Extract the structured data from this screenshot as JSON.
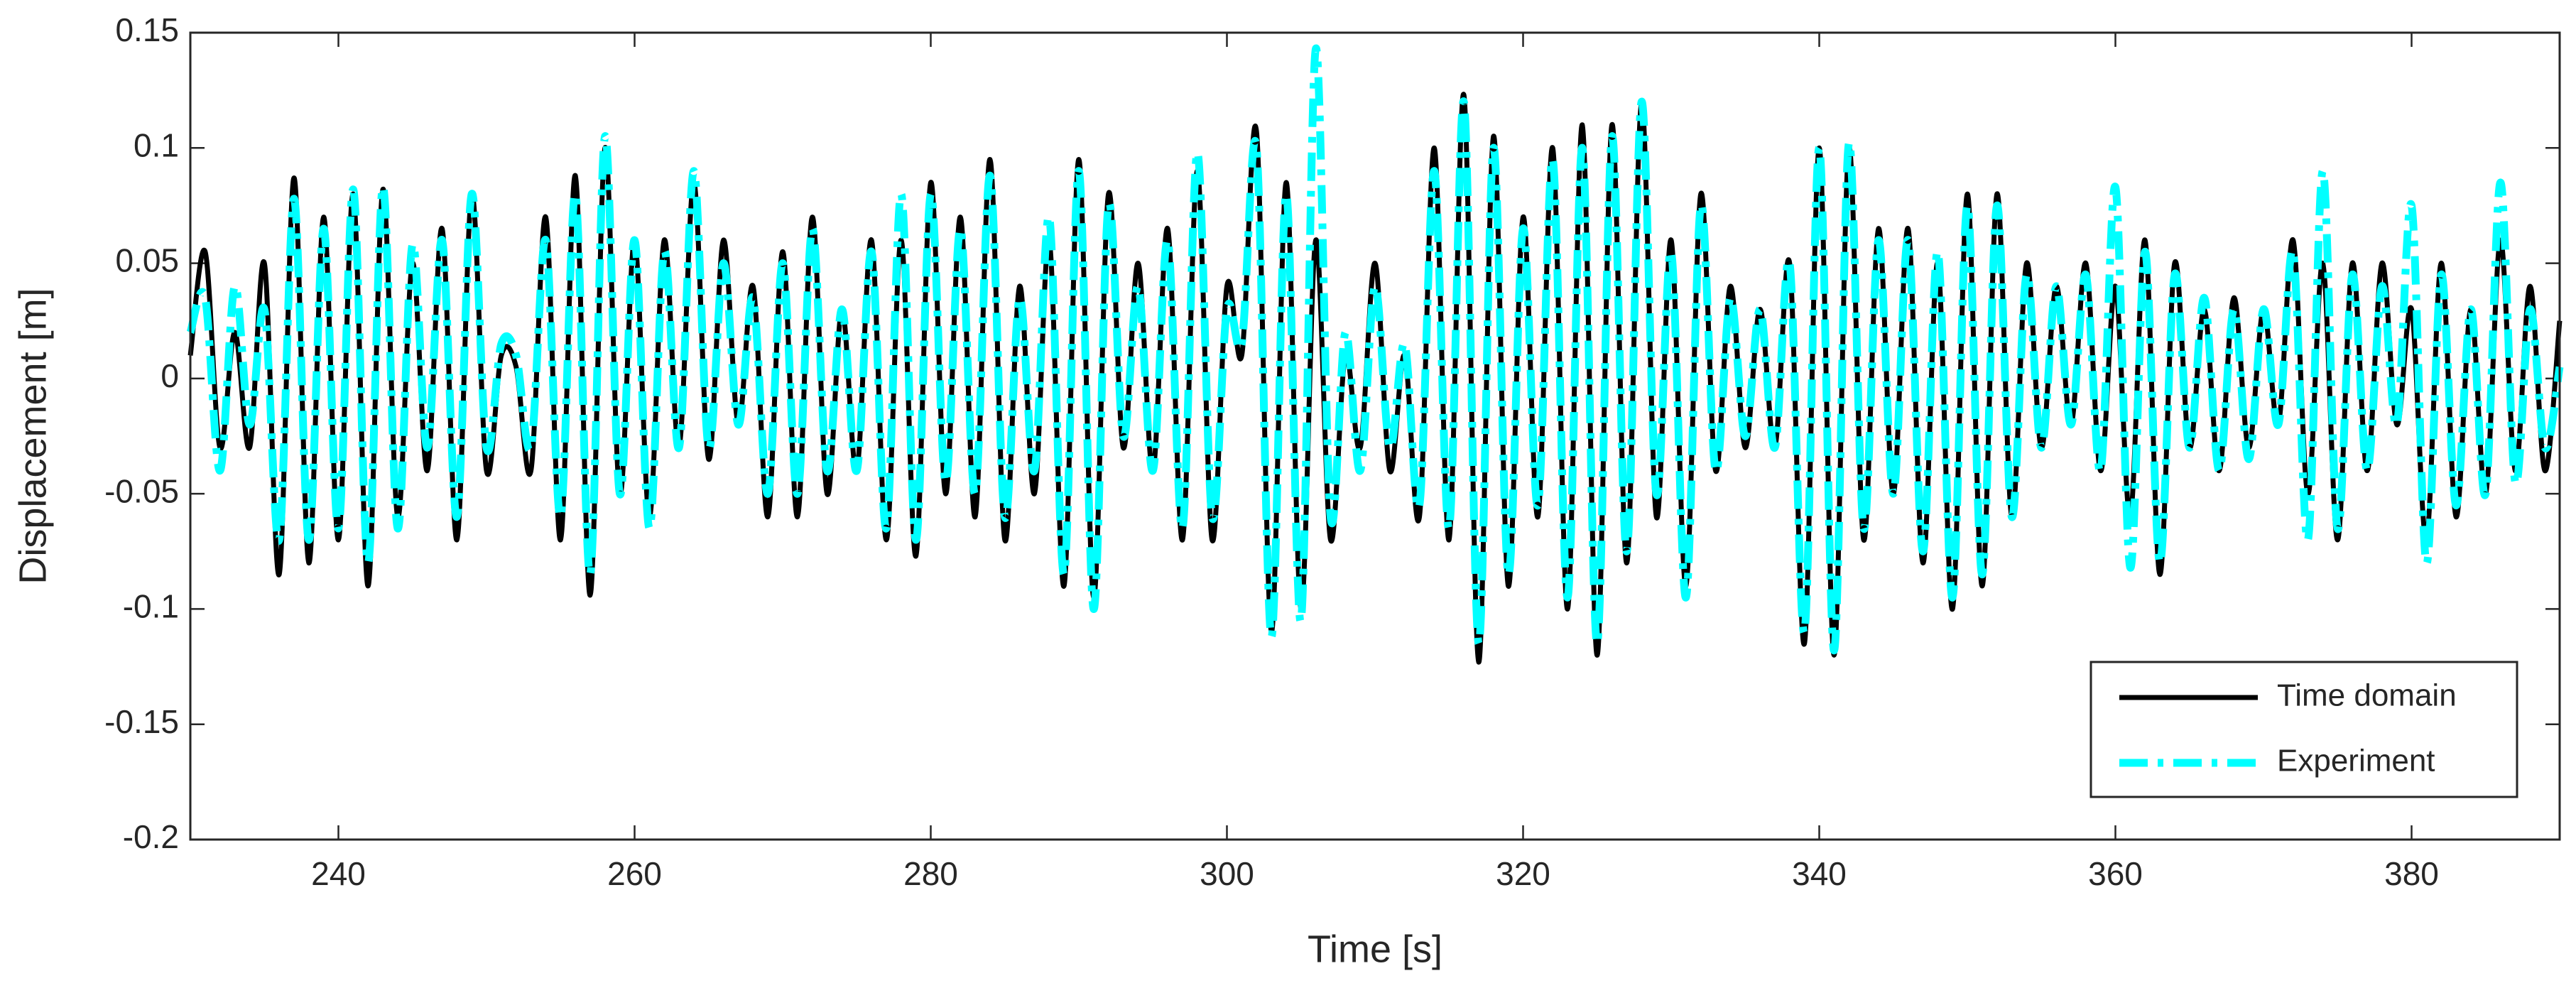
{
  "chart_data": {
    "type": "line",
    "xlabel": "Time [s]",
    "ylabel": "Displacement [m]",
    "xlim": [
      230,
      390
    ],
    "xticks": [
      240,
      260,
      280,
      300,
      320,
      340,
      360,
      380
    ],
    "ylim": [
      -0.2,
      0.15
    ],
    "yticks": [
      -0.2,
      -0.15,
      -0.1,
      -0.05,
      0,
      0.05,
      0.1,
      0.15
    ],
    "legend": "lower right",
    "x": [
      230,
      231,
      232,
      233,
      234,
      235,
      236,
      237,
      238,
      239,
      240,
      241,
      242,
      243,
      244,
      245,
      246,
      247,
      248,
      249,
      250,
      251,
      252,
      253,
      254,
      255,
      256,
      257,
      258,
      259,
      260,
      261,
      262,
      263,
      264,
      265,
      266,
      267,
      268,
      269,
      270,
      271,
      272,
      273,
      274,
      275,
      276,
      277,
      278,
      279,
      280,
      281,
      282,
      283,
      284,
      285,
      286,
      287,
      288,
      289,
      290,
      291,
      292,
      293,
      294,
      295,
      296,
      297,
      298,
      299,
      300,
      301,
      302,
      303,
      304,
      305,
      306,
      307,
      308,
      309,
      310,
      311,
      312,
      313,
      314,
      315,
      316,
      317,
      318,
      319,
      320,
      321,
      322,
      323,
      324,
      325,
      326,
      327,
      328,
      329,
      330,
      331,
      332,
      333,
      334,
      335,
      336,
      337,
      338,
      339,
      340,
      341,
      342,
      343,
      344,
      345,
      346,
      347,
      348,
      349,
      350,
      351,
      352,
      353,
      354,
      355,
      356,
      357,
      358,
      359,
      360,
      361,
      362,
      363,
      364,
      365,
      366,
      367,
      368,
      369,
      370,
      371,
      372,
      373,
      374,
      375,
      376,
      377,
      378,
      379,
      380,
      381,
      382,
      383,
      384,
      385,
      386,
      387,
      388,
      389,
      390
    ],
    "series": [
      {
        "name": "Time domain",
        "color": "#000000",
        "style": "solid",
        "values": [
          0.01,
          0.055,
          -0.03,
          0.02,
          -0.03,
          0.05,
          -0.085,
          0.087,
          -0.08,
          0.07,
          -0.07,
          0.08,
          -0.09,
          0.082,
          -0.06,
          0.05,
          -0.04,
          0.065,
          -0.07,
          0.08,
          -0.04,
          0.01,
          0.005,
          -0.04,
          0.07,
          -0.07,
          0.088,
          -0.094,
          0.1,
          -0.05,
          0.06,
          -0.06,
          0.06,
          -0.03,
          0.085,
          -0.035,
          0.06,
          -0.02,
          0.04,
          -0.06,
          0.055,
          -0.06,
          0.07,
          -0.05,
          0.03,
          -0.04,
          0.06,
          -0.07,
          0.06,
          -0.077,
          0.085,
          -0.05,
          0.07,
          -0.06,
          0.095,
          -0.07,
          0.04,
          -0.05,
          0.06,
          -0.09,
          0.095,
          -0.095,
          0.08,
          -0.03,
          0.05,
          -0.04,
          0.065,
          -0.07,
          0.09,
          -0.07,
          0.04,
          0.01,
          0.107,
          -0.11,
          0.085,
          -0.1,
          0.06,
          -0.07,
          0.01,
          -0.03,
          0.05,
          -0.04,
          0.01,
          -0.06,
          0.1,
          -0.07,
          0.123,
          -0.123,
          0.105,
          -0.09,
          0.07,
          -0.06,
          0.1,
          -0.1,
          0.11,
          -0.12,
          0.11,
          -0.08,
          0.12,
          -0.06,
          0.06,
          -0.09,
          0.08,
          -0.04,
          0.04,
          -0.03,
          0.03,
          -0.03,
          0.05,
          -0.115,
          0.1,
          -0.12,
          0.1,
          -0.07,
          0.065,
          -0.05,
          0.065,
          -0.08,
          0.05,
          -0.1,
          0.08,
          -0.09,
          0.08,
          -0.06,
          0.05,
          -0.03,
          0.04,
          -0.02,
          0.05,
          -0.04,
          0.04,
          -0.06,
          0.06,
          -0.085,
          0.05,
          -0.03,
          0.03,
          -0.04,
          0.035,
          -0.03,
          0.03,
          -0.02,
          0.06,
          -0.05,
          0.05,
          -0.07,
          0.05,
          -0.04,
          0.05,
          -0.02,
          0.03,
          -0.07,
          0.05,
          -0.06,
          0.03,
          -0.05,
          0.06,
          -0.04,
          0.04,
          -0.04,
          0.025
        ]
      },
      {
        "name": "Experiment",
        "color": "#00ffff",
        "style": "dashdot",
        "values": [
          0.02,
          0.035,
          -0.04,
          0.04,
          -0.02,
          0.03,
          -0.07,
          0.078,
          -0.07,
          0.065,
          -0.065,
          0.082,
          -0.08,
          0.083,
          -0.065,
          0.058,
          -0.03,
          0.06,
          -0.06,
          0.08,
          -0.03,
          0.015,
          0.01,
          -0.03,
          0.06,
          -0.06,
          0.08,
          -0.085,
          0.105,
          -0.05,
          0.06,
          -0.065,
          0.055,
          -0.03,
          0.09,
          -0.03,
          0.05,
          -0.02,
          0.035,
          -0.05,
          0.05,
          -0.05,
          0.065,
          -0.04,
          0.03,
          -0.04,
          0.055,
          -0.065,
          0.08,
          -0.07,
          0.08,
          -0.045,
          0.065,
          -0.05,
          0.088,
          -0.06,
          0.035,
          -0.04,
          0.07,
          -0.085,
          0.09,
          -0.1,
          0.075,
          -0.025,
          0.04,
          -0.04,
          0.06,
          -0.065,
          0.098,
          -0.06,
          0.03,
          0.015,
          0.1,
          -0.112,
          0.08,
          -0.105,
          0.143,
          -0.06,
          0.02,
          -0.04,
          0.04,
          -0.03,
          0.015,
          -0.055,
          0.09,
          -0.065,
          0.12,
          -0.115,
          0.1,
          -0.085,
          0.065,
          -0.055,
          0.095,
          -0.095,
          0.1,
          -0.115,
          0.105,
          -0.075,
          0.12,
          -0.05,
          0.055,
          -0.095,
          0.075,
          -0.04,
          0.035,
          -0.025,
          0.03,
          -0.03,
          0.05,
          -0.11,
          0.1,
          -0.118,
          0.102,
          -0.065,
          0.06,
          -0.05,
          0.06,
          -0.075,
          0.055,
          -0.095,
          0.075,
          -0.085,
          0.075,
          -0.06,
          0.045,
          -0.03,
          0.04,
          -0.02,
          0.045,
          -0.04,
          0.083,
          -0.082,
          0.055,
          -0.08,
          0.045,
          -0.03,
          0.035,
          -0.04,
          0.03,
          -0.035,
          0.03,
          -0.02,
          0.055,
          -0.07,
          0.09,
          -0.065,
          0.045,
          -0.04,
          0.04,
          -0.02,
          0.075,
          -0.08,
          0.045,
          -0.055,
          0.03,
          -0.05,
          0.085,
          -0.045,
          0.03,
          -0.03,
          0.005
        ]
      }
    ]
  }
}
